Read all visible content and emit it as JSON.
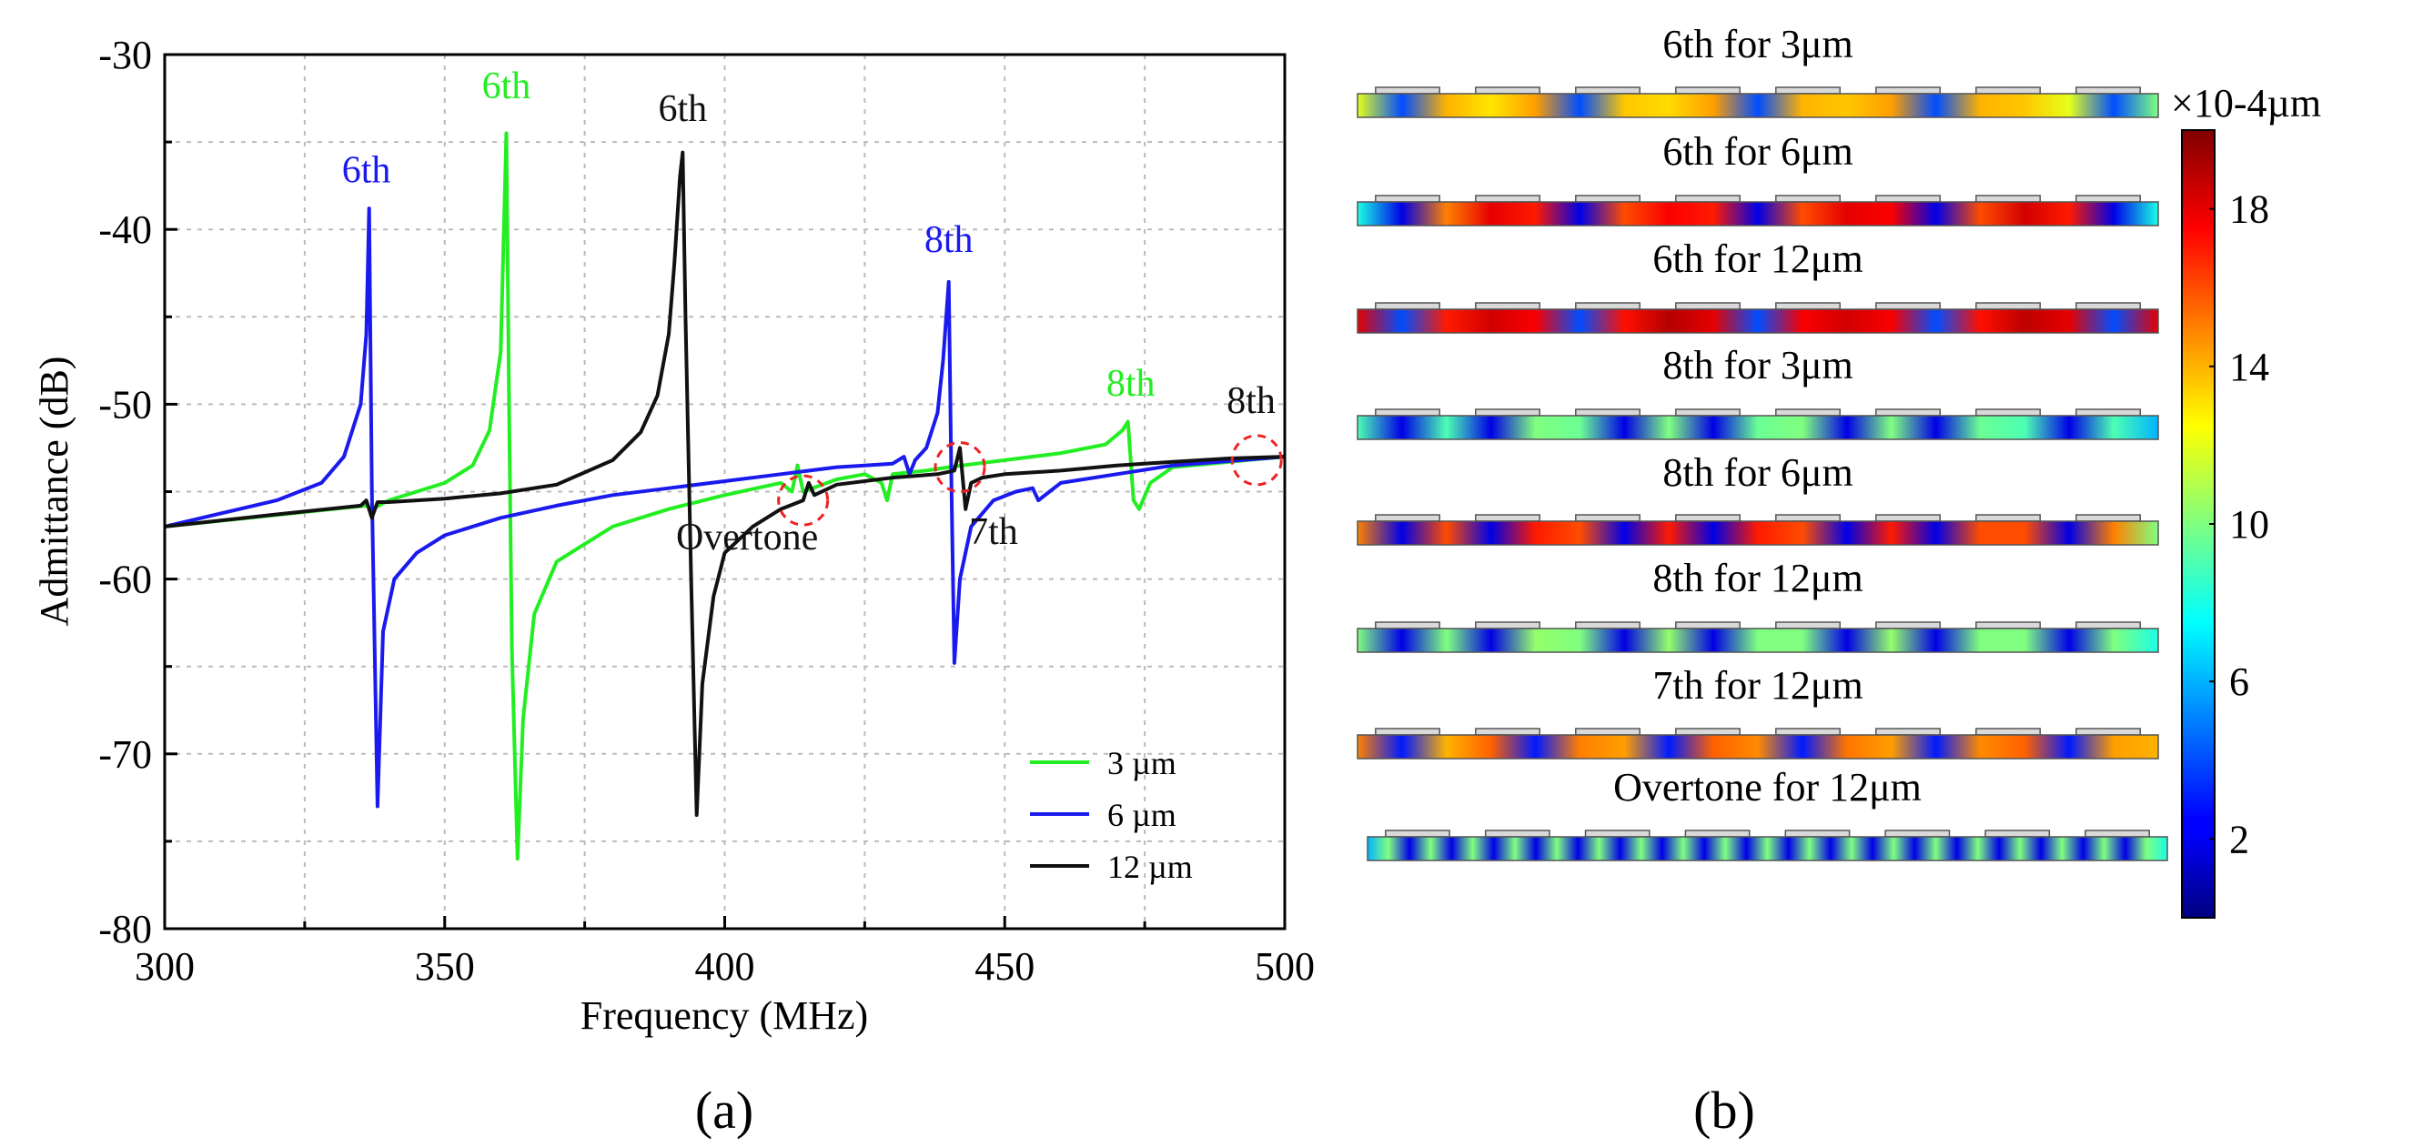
{
  "panel_a": {
    "caption": "(a)",
    "legend": [
      {
        "label": "3 µm",
        "color": "#22ee22"
      },
      {
        "label": "6 µm",
        "color": "#1a1aee"
      },
      {
        "label": "12 µm",
        "color": "#111111"
      }
    ]
  },
  "panel_b": {
    "caption": "(b)",
    "colorbar": {
      "label": "×10-4µm",
      "ticks": [
        2,
        6,
        10,
        14,
        18
      ],
      "range": [
        0,
        20
      ]
    },
    "modes": [
      {
        "title": "6th for 3μm",
        "pattern": [
          0.6,
          0.2,
          0.7,
          0.65,
          0.72,
          0.2,
          0.68,
          0.66,
          0.72,
          0.2,
          0.7,
          0.68,
          0.72,
          0.2,
          0.7,
          0.68,
          0.6,
          0.2,
          0.5
        ]
      },
      {
        "title": "6th for 6μm",
        "pattern": [
          0.4,
          0.1,
          0.75,
          0.9,
          0.85,
          0.1,
          0.8,
          0.88,
          0.85,
          0.1,
          0.8,
          0.9,
          0.88,
          0.1,
          0.8,
          0.92,
          0.85,
          0.1,
          0.4
        ]
      },
      {
        "title": "6th for 12μm",
        "pattern": [
          0.9,
          0.2,
          0.85,
          0.92,
          0.88,
          0.2,
          0.86,
          0.95,
          0.9,
          0.2,
          0.88,
          0.92,
          0.88,
          0.2,
          0.86,
          0.94,
          0.9,
          0.2,
          0.9
        ]
      },
      {
        "title": "8th for 3μm",
        "pattern": [
          0.45,
          0.1,
          0.45,
          0.1,
          0.5,
          0.48,
          0.1,
          0.5,
          0.1,
          0.48,
          0.5,
          0.1,
          0.5,
          0.1,
          0.48,
          0.45,
          0.1,
          0.45,
          0.3
        ]
      },
      {
        "title": "8th for 6μm",
        "pattern": [
          0.75,
          0.1,
          0.8,
          0.1,
          0.85,
          0.8,
          0.1,
          0.85,
          0.1,
          0.85,
          0.8,
          0.1,
          0.85,
          0.1,
          0.8,
          0.8,
          0.1,
          0.75,
          0.5
        ]
      },
      {
        "title": "8th for 12μm",
        "pattern": [
          0.5,
          0.1,
          0.5,
          0.1,
          0.52,
          0.5,
          0.1,
          0.52,
          0.1,
          0.5,
          0.5,
          0.1,
          0.52,
          0.1,
          0.5,
          0.5,
          0.1,
          0.5,
          0.4
        ]
      },
      {
        "title": "7th for 12μm",
        "pattern": [
          0.75,
          0.15,
          0.7,
          0.78,
          0.15,
          0.75,
          0.72,
          0.15,
          0.78,
          0.74,
          0.15,
          0.76,
          0.72,
          0.15,
          0.74,
          0.78,
          0.15,
          0.72,
          0.7
        ]
      },
      {
        "title": "Overtone for 12μm",
        "pattern": [
          0.3,
          0.5,
          0.1,
          0.5,
          0.1,
          0.5,
          0.1,
          0.5,
          0.1,
          0.5,
          0.1,
          0.5,
          0.1,
          0.5,
          0.1,
          0.5,
          0.1,
          0.5,
          0.1,
          0.5,
          0.1,
          0.5,
          0.1,
          0.5,
          0.1,
          0.5,
          0.1,
          0.5,
          0.1,
          0.5,
          0.1,
          0.5,
          0.1,
          0.5,
          0.1,
          0.5,
          0.1,
          0.5,
          0.4
        ]
      }
    ]
  },
  "chart_data": {
    "type": "line",
    "title": "",
    "xlabel": "Frequency (MHz)",
    "ylabel": "Admittance (dB)",
    "xlim": [
      300,
      500
    ],
    "ylim": [
      -80,
      -30
    ],
    "xticks": [
      300,
      350,
      400,
      450,
      500
    ],
    "yticks": [
      -80,
      -70,
      -60,
      -50,
      -40,
      -30
    ],
    "grid": true,
    "legend_position": "bottom-right",
    "series": [
      {
        "name": "3 µm",
        "color": "#22ee22",
        "x": [
          300,
          336,
          337,
          340,
          350,
          355,
          358,
          360,
          361,
          361.5,
          362,
          363,
          364,
          366,
          370,
          380,
          390,
          400,
          410,
          412,
          413,
          414,
          420,
          425,
          428,
          429,
          430,
          436,
          440,
          445,
          450,
          460,
          468,
          471,
          472,
          473,
          474,
          476,
          480,
          500
        ],
        "y": [
          -57,
          -55.8,
          -56,
          -55.5,
          -54.5,
          -53.5,
          -51.5,
          -47,
          -34.5,
          -50,
          -64,
          -76,
          -68,
          -62,
          -59,
          -57,
          -56,
          -55.2,
          -54.5,
          -55,
          -53.5,
          -55,
          -54.3,
          -54,
          -54.5,
          -55.5,
          -54,
          -53.8,
          -53.6,
          -53.4,
          -53.2,
          -52.8,
          -52.3,
          -51.5,
          -51,
          -55.5,
          -56,
          -54.5,
          -53.6,
          -53
        ]
      },
      {
        "name": "6 µm",
        "color": "#1a1aee",
        "x": [
          300,
          320,
          328,
          332,
          335,
          336,
          336.5,
          337,
          338,
          339,
          341,
          345,
          350,
          360,
          370,
          380,
          390,
          400,
          410,
          420,
          425,
          430,
          432,
          433,
          434,
          436,
          438,
          439,
          440,
          440.5,
          441,
          442,
          444,
          448,
          452,
          455,
          456,
          460,
          470,
          480,
          500
        ],
        "y": [
          -57,
          -55.5,
          -54.5,
          -53,
          -50,
          -46,
          -38.8,
          -55,
          -73,
          -63,
          -60,
          -58.5,
          -57.5,
          -56.5,
          -55.8,
          -55.2,
          -54.8,
          -54.4,
          -54,
          -53.6,
          -53.5,
          -53.4,
          -53,
          -54,
          -53.2,
          -52.5,
          -50.5,
          -47.5,
          -43,
          -55,
          -64.8,
          -60,
          -57,
          -55.5,
          -55,
          -54.8,
          -55.5,
          -54.5,
          -54,
          -53.5,
          -53
        ]
      },
      {
        "name": "12 µm",
        "color": "#111111",
        "x": [
          300,
          320,
          335,
          336,
          337,
          338,
          340,
          350,
          360,
          370,
          380,
          385,
          388,
          390,
          391,
          392,
          392.5,
          393,
          394,
          395,
          396,
          398,
          400,
          405,
          410,
          414,
          415,
          416,
          420,
          430,
          438,
          441,
          442,
          443,
          444,
          446,
          450,
          460,
          470,
          480,
          490,
          500
        ],
        "y": [
          -57,
          -56.3,
          -55.8,
          -55.5,
          -56.5,
          -55.6,
          -55.6,
          -55.4,
          -55.1,
          -54.6,
          -53.2,
          -51.6,
          -49.5,
          -46,
          -42,
          -37,
          -35.6,
          -45,
          -60,
          -73.5,
          -66,
          -61,
          -58.5,
          -57,
          -56,
          -55.5,
          -54.5,
          -55.2,
          -54.6,
          -54.2,
          -54,
          -53.8,
          -52.5,
          -56,
          -54.5,
          -54.2,
          -54,
          -53.8,
          -53.5,
          -53.3,
          -53.1,
          -53
        ]
      }
    ],
    "annotations": [
      {
        "text": "6th",
        "x": 336,
        "y": -37.3,
        "color": "#1a1aee"
      },
      {
        "text": "6th",
        "x": 361,
        "y": -32.5,
        "color": "#22ee22"
      },
      {
        "text": "6th",
        "x": 392.5,
        "y": -33.8,
        "color": "#111111"
      },
      {
        "text": "8th",
        "x": 440,
        "y": -41.3,
        "color": "#1a1aee"
      },
      {
        "text": "8th",
        "x": 472.5,
        "y": -49.5,
        "color": "#22ee22"
      },
      {
        "text": "8th",
        "x": 494,
        "y": -50.5,
        "color": "#111111"
      },
      {
        "text": "Overtone",
        "x": 404,
        "y": -58.3,
        "color": "#111111"
      },
      {
        "text": "7th",
        "x": 448,
        "y": -58,
        "color": "#111111"
      }
    ],
    "highlight_circles": [
      {
        "x": 414,
        "y": -55.5
      },
      {
        "x": 442,
        "y": -53.6
      },
      {
        "x": 495,
        "y": -53.2
      }
    ]
  }
}
